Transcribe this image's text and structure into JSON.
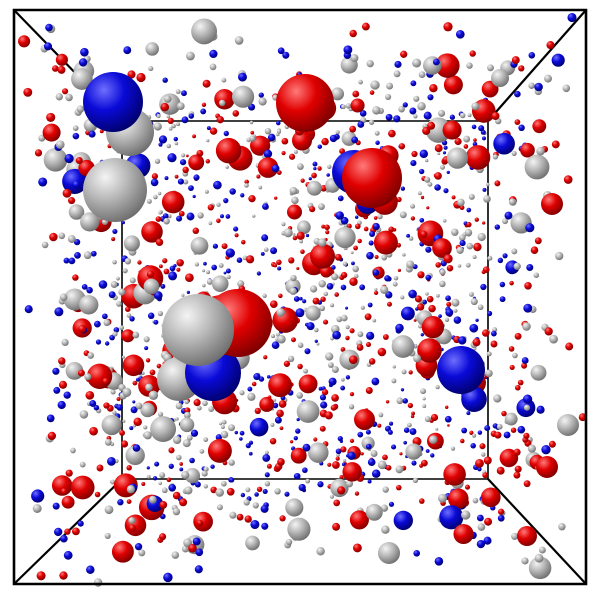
{
  "scene": {
    "kind": "3d-particle-simulation-box",
    "background": "#ffffff",
    "edge_color": "#000000",
    "materials": {
      "red": {
        "name": "red-sphere",
        "base": "#e00000",
        "light": "#ff7a7a",
        "dark": "#7a0000"
      },
      "blue": {
        "name": "blue-sphere",
        "base": "#0a0ad8",
        "light": "#6f6fff",
        "dark": "#00006a"
      },
      "gray": {
        "name": "gray-sphere",
        "base": "#b9b9b9",
        "light": "#f4f4f4",
        "dark": "#6c6c6c"
      }
    },
    "particle_mix": {
      "gray": 0.36,
      "blue": 0.32,
      "red": 0.32
    },
    "clusters": [
      {
        "color": "blue",
        "count": 1
      },
      {
        "color": "gray",
        "count": 2
      },
      {
        "color": "red",
        "count": 1
      },
      {
        "color": "red",
        "count": 1
      },
      {
        "color": "red",
        "count": 2
      },
      {
        "color": "gray",
        "count": 1
      },
      {
        "color": "blue",
        "count": 1
      },
      {
        "color": "blue",
        "count": 1
      }
    ]
  }
}
